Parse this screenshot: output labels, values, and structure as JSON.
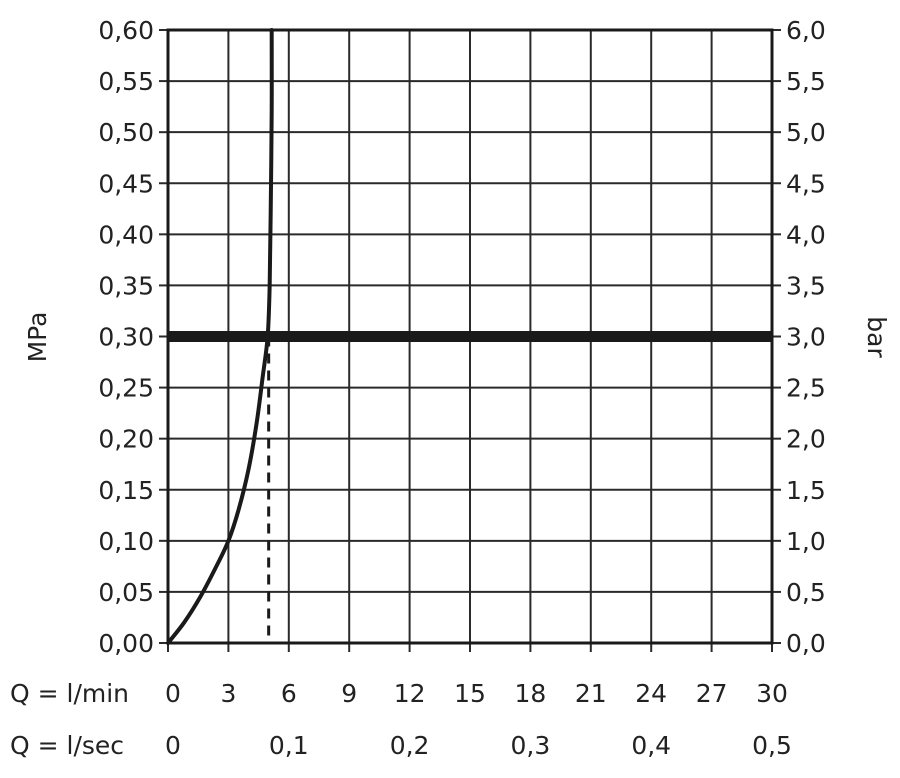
{
  "chart_data": {
    "type": "line",
    "xlim": [
      0,
      30
    ],
    "ylim": [
      0,
      0.6
    ],
    "grid": true,
    "left_axis": {
      "label": "MPa",
      "ticks": [
        0,
        0.05,
        0.1,
        0.15,
        0.2,
        0.25,
        0.3,
        0.35,
        0.4,
        0.45,
        0.5,
        0.55,
        0.6
      ],
      "tick_labels": [
        "0,00",
        "0,05",
        "0,10",
        "0,15",
        "0,20",
        "0,25",
        "0,30",
        "0,35",
        "0,40",
        "0,45",
        "0,50",
        "0,55",
        "0,60"
      ]
    },
    "right_axis": {
      "label": "bar",
      "ticks": [
        0,
        0.05,
        0.1,
        0.15,
        0.2,
        0.25,
        0.3,
        0.35,
        0.4,
        0.45,
        0.5,
        0.55,
        0.6
      ],
      "tick_labels": [
        "0,0",
        "0,5",
        "1,0",
        "1,5",
        "2,0",
        "2,5",
        "3,0",
        "3,5",
        "4,0",
        "4,5",
        "5,0",
        "5,5",
        "6,0"
      ]
    },
    "x_axis_lmin": {
      "label": "Q = l/min",
      "ticks": [
        0,
        3,
        6,
        9,
        12,
        15,
        18,
        21,
        24,
        27,
        30
      ],
      "tick_labels": [
        "0",
        "3",
        "6",
        "9",
        "12",
        "15",
        "18",
        "21",
        "24",
        "27",
        "30"
      ]
    },
    "x_axis_lsec": {
      "label": "Q = l/sec",
      "ticks": [
        0,
        6,
        12,
        18,
        24,
        30
      ],
      "tick_labels": [
        "0",
        "0,1",
        "0,2",
        "0,3",
        "0,4",
        "0,5"
      ]
    },
    "series": [
      {
        "x": [
          0,
          0.8,
          1.6,
          2.4,
          3.0,
          3.5,
          4.0,
          4.4,
          4.7,
          4.95,
          5.05,
          5.1,
          5.15,
          5.15
        ],
        "y": [
          0,
          0.02,
          0.045,
          0.075,
          0.1,
          0.13,
          0.17,
          0.215,
          0.26,
          0.3,
          0.35,
          0.42,
          0.52,
          0.6
        ]
      }
    ],
    "reference_hline": {
      "y": 0.3
    },
    "reference_vline": {
      "x": 5,
      "from_y": 0,
      "to_y": 0.3,
      "style": "dashed"
    }
  }
}
